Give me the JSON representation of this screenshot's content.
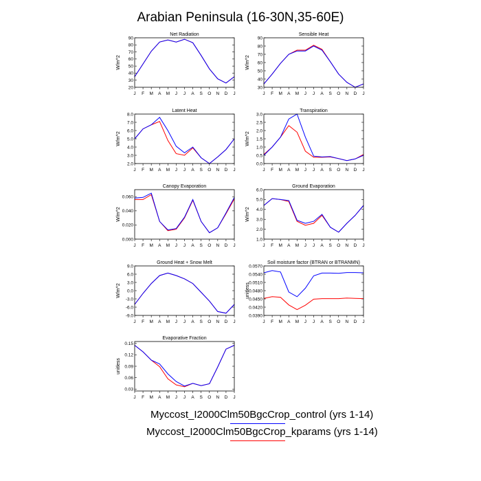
{
  "title": "Arabian Peninsula (16-30N,35-60E)",
  "months": [
    "J",
    "F",
    "M",
    "A",
    "M",
    "J",
    "J",
    "A",
    "S",
    "O",
    "N",
    "D",
    "J"
  ],
  "legend": [
    {
      "label": "Myccost_I2000Clm50BgcCrop_control (yrs 1-14)",
      "color": "#0000ff"
    },
    {
      "label": "Myccost_I2000Clm50BgcCrop_kparams (yrs 1-14)",
      "color": "#ff0000"
    }
  ],
  "chart_data": [
    {
      "type": "line",
      "title": "Net Radiation",
      "ylabel": "W/m^2",
      "ylim": [
        20,
        90
      ],
      "yticks": [
        "20",
        "30",
        "40",
        "50",
        "60",
        "70",
        "80",
        "90"
      ],
      "categories": [
        "J",
        "F",
        "M",
        "A",
        "M",
        "J",
        "J",
        "A",
        "S",
        "O",
        "N",
        "D",
        "J"
      ],
      "series": [
        {
          "color": "#ff0000",
          "values": [
            35,
            53,
            71,
            84,
            87,
            84,
            88,
            83,
            65,
            46,
            32,
            26,
            35
          ]
        },
        {
          "color": "#0000ff",
          "values": [
            35,
            53,
            71,
            84,
            87,
            84,
            88,
            83,
            65,
            46,
            32,
            26,
            35
          ]
        }
      ]
    },
    {
      "type": "line",
      "title": "Sensible Heat",
      "ylabel": "W/m^2",
      "ylim": [
        30,
        90
      ],
      "yticks": [
        "30",
        "40",
        "50",
        "60",
        "70",
        "80",
        "90"
      ],
      "categories": [
        "J",
        "F",
        "M",
        "A",
        "M",
        "J",
        "J",
        "A",
        "S",
        "O",
        "N",
        "D",
        "J"
      ],
      "series": [
        {
          "color": "#ff0000",
          "values": [
            34,
            46,
            59,
            70,
            75,
            75,
            81,
            76,
            61,
            46,
            36,
            30,
            34
          ]
        },
        {
          "color": "#0000ff",
          "values": [
            34,
            46,
            59,
            70,
            74,
            74,
            80,
            75,
            61,
            46,
            36,
            30,
            34
          ]
        }
      ]
    },
    {
      "type": "line",
      "title": "Latent Heat",
      "ylabel": "W/m^2",
      "ylim": [
        2.0,
        8.0
      ],
      "yticks": [
        "2.0",
        "3.0",
        "4.0",
        "5.0",
        "6.0",
        "7.0",
        "8.0"
      ],
      "categories": [
        "J",
        "F",
        "M",
        "A",
        "M",
        "J",
        "J",
        "A",
        "S",
        "O",
        "N",
        "D",
        "J"
      ],
      "series": [
        {
          "color": "#ff0000",
          "values": [
            5.0,
            6.2,
            6.7,
            7.1,
            4.8,
            3.2,
            3.0,
            3.9,
            2.7,
            2.0,
            2.8,
            3.7,
            5.0
          ]
        },
        {
          "color": "#0000ff",
          "values": [
            5.0,
            6.2,
            6.7,
            7.6,
            6.0,
            4.1,
            3.3,
            4.0,
            2.7,
            2.0,
            2.8,
            3.7,
            5.0
          ]
        }
      ]
    },
    {
      "type": "line",
      "title": "Transpiration",
      "ylabel": "W/m^2",
      "ylim": [
        0.0,
        3.0
      ],
      "yticks": [
        "0.0",
        "0.5",
        "1.0",
        "1.5",
        "2.0",
        "2.5",
        "3.0"
      ],
      "categories": [
        "J",
        "F",
        "M",
        "A",
        "M",
        "J",
        "J",
        "A",
        "S",
        "O",
        "N",
        "D",
        "J"
      ],
      "series": [
        {
          "color": "#ff0000",
          "values": [
            0.55,
            1.0,
            1.6,
            2.3,
            1.9,
            0.75,
            0.38,
            0.38,
            0.4,
            0.3,
            0.18,
            0.28,
            0.55
          ]
        },
        {
          "color": "#0000ff",
          "values": [
            0.5,
            1.0,
            1.6,
            2.7,
            3.0,
            1.6,
            0.45,
            0.4,
            0.42,
            0.3,
            0.18,
            0.28,
            0.5
          ]
        }
      ]
    },
    {
      "type": "line",
      "title": "Canopy Evaporation",
      "ylabel": "W/m^2",
      "ylim": [
        0.0,
        0.07
      ],
      "yticks": [
        "0.000",
        "0.020",
        "0.040",
        "0.060"
      ],
      "ytick_values": [
        0.0,
        0.02,
        0.04,
        0.06
      ],
      "categories": [
        "J",
        "F",
        "M",
        "A",
        "M",
        "J",
        "J",
        "A",
        "S",
        "O",
        "N",
        "D",
        "J"
      ],
      "series": [
        {
          "color": "#ff0000",
          "values": [
            0.056,
            0.056,
            0.063,
            0.025,
            0.012,
            0.014,
            0.03,
            0.055,
            0.025,
            0.009,
            0.016,
            0.036,
            0.057
          ]
        },
        {
          "color": "#0000ff",
          "values": [
            0.058,
            0.059,
            0.065,
            0.025,
            0.013,
            0.015,
            0.031,
            0.056,
            0.025,
            0.009,
            0.016,
            0.037,
            0.059
          ]
        }
      ]
    },
    {
      "type": "line",
      "title": "Ground Evaporation",
      "ylabel": "W/m^2",
      "ylim": [
        1.0,
        6.0
      ],
      "yticks": [
        "1.0",
        "2.0",
        "3.0",
        "4.0",
        "5.0",
        "6.0"
      ],
      "categories": [
        "J",
        "F",
        "M",
        "A",
        "M",
        "J",
        "J",
        "A",
        "S",
        "O",
        "N",
        "D",
        "J"
      ],
      "series": [
        {
          "color": "#ff0000",
          "values": [
            4.4,
            5.1,
            5.0,
            4.8,
            2.8,
            2.4,
            2.6,
            3.4,
            2.2,
            1.7,
            2.6,
            3.4,
            4.4
          ]
        },
        {
          "color": "#0000ff",
          "values": [
            4.4,
            5.1,
            5.0,
            4.9,
            2.9,
            2.6,
            2.8,
            3.5,
            2.2,
            1.7,
            2.6,
            3.4,
            4.4
          ]
        }
      ]
    },
    {
      "type": "line",
      "title": "Ground Heat + Snow Melt",
      "ylabel": "W/m^2",
      "ylim": [
        -9.0,
        9.0
      ],
      "yticks": [
        "-9.0",
        "-6.0",
        "-3.0",
        "0.0",
        "3.0",
        "6.0",
        "9.0"
      ],
      "categories": [
        "J",
        "F",
        "M",
        "A",
        "M",
        "J",
        "J",
        "A",
        "S",
        "O",
        "N",
        "D",
        "J"
      ],
      "series": [
        {
          "color": "#ff0000",
          "values": [
            -5.0,
            -1.0,
            2.6,
            5.5,
            6.4,
            5.5,
            4.3,
            2.6,
            -0.6,
            -3.8,
            -7.6,
            -8.2,
            -5.0
          ]
        },
        {
          "color": "#0000ff",
          "values": [
            -5.0,
            -1.0,
            2.6,
            5.5,
            6.4,
            5.5,
            4.3,
            2.6,
            -0.6,
            -3.8,
            -7.6,
            -8.2,
            -5.0
          ]
        }
      ]
    },
    {
      "type": "line",
      "title": "Soil moisture factor (BTRAN or BTRANMN)",
      "ylabel": "unitless",
      "ylim": [
        0.039,
        0.057
      ],
      "yticks": [
        "0.0390",
        "0.0420",
        "0.0450",
        "0.0480",
        "0.0510",
        "0.0540",
        "0.0570"
      ],
      "categories": [
        "J",
        "F",
        "M",
        "A",
        "M",
        "J",
        "J",
        "A",
        "S",
        "O",
        "N",
        "D",
        "J"
      ],
      "series": [
        {
          "color": "#ff0000",
          "values": [
            0.0452,
            0.0458,
            0.0456,
            0.0428,
            0.0411,
            0.0427,
            0.0449,
            0.0451,
            0.0451,
            0.0451,
            0.0453,
            0.0452,
            0.0451
          ]
        },
        {
          "color": "#0000ff",
          "values": [
            0.0545,
            0.0553,
            0.0548,
            0.0475,
            0.0458,
            0.0489,
            0.0534,
            0.0544,
            0.0544,
            0.0543,
            0.0546,
            0.0546,
            0.0545
          ]
        }
      ]
    },
    {
      "type": "line",
      "title": "Evaporative Fraction",
      "ylabel": "unitless",
      "ylim": [
        0.025,
        0.155
      ],
      "yticks": [
        "0.03",
        "0.06",
        "0.09",
        "0.12",
        "0.15"
      ],
      "ytick_values": [
        0.03,
        0.06,
        0.09,
        0.12,
        0.15
      ],
      "categories": [
        "J",
        "F",
        "M",
        "A",
        "M",
        "J",
        "J",
        "A",
        "S",
        "O",
        "N",
        "D",
        "J"
      ],
      "series": [
        {
          "color": "#ff0000",
          "values": [
            0.145,
            0.128,
            0.106,
            0.089,
            0.057,
            0.041,
            0.036,
            0.045,
            0.039,
            0.044,
            0.088,
            0.135,
            0.145
          ]
        },
        {
          "color": "#0000ff",
          "values": [
            0.145,
            0.128,
            0.106,
            0.096,
            0.07,
            0.05,
            0.038,
            0.045,
            0.039,
            0.044,
            0.088,
            0.135,
            0.145
          ]
        }
      ]
    }
  ]
}
